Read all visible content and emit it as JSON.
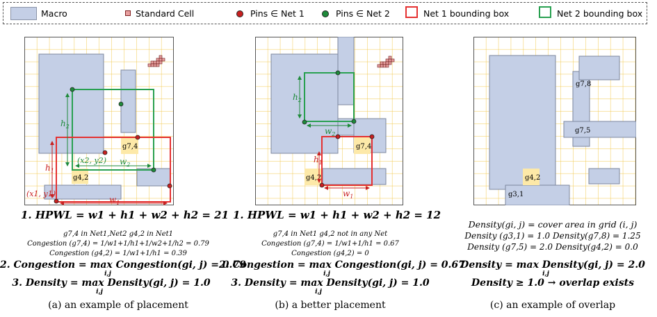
{
  "legend": {
    "macro": "Macro",
    "standard_cell": "Standard Cell",
    "pins_net1": "Pins ∈ Net 1",
    "pins_net2": "Pins ∈ Net 2",
    "net1_box": "Net 1 bounding box",
    "net2_box": "Net 2 bounding box",
    "colors": {
      "macro": "#c4cfe6",
      "grid": "#f2c84b",
      "net1": "#e53030",
      "net2": "#28a050",
      "pin1": "#c82020",
      "pin2": "#1e8a3a",
      "highlight": "#fde9a8"
    }
  },
  "panel_a": {
    "labels": {
      "h2": "h",
      "h2_sub": "2",
      "w2": "w",
      "w2_sub": "2",
      "h1": "h",
      "h1_sub": "1",
      "w1": "w",
      "w1_sub": "1",
      "x2y2": "(x2, y2)",
      "x1y1": "(x1, y1)",
      "g74": "g7,4",
      "g42": "g4,2"
    },
    "hpwl": "1.  HPWL  =  w1 + h1 + w2 + h2 = 21",
    "note1": "g7,4 in Net1,Net2        g4,2 in Net1",
    "note2": "Congestion (g7,4) = 1/w1+1/h1+1/w2+1/h2 = 0.79",
    "note3": "Congestion (g4,2) = 1/w1+1/h1 = 0.39",
    "congestion": "2. Congestion = max Congestion(gi, j) = 0.79",
    "congestion_sub": "i,j",
    "density": "3. Density = max Density(gi, j) = 1.0",
    "density_sub": "i,j",
    "caption": "(a) an example of placement"
  },
  "panel_b": {
    "labels": {
      "h2": "h",
      "h2_sub": "2",
      "w2": "w",
      "w2_sub": "2",
      "h1": "h",
      "h1_sub": "1",
      "w1": "w",
      "w1_sub": "1",
      "g74": "g7,4",
      "g42": "g4,2"
    },
    "hpwl": "1.  HPWL  =  w1 + h1 + w2 + h2 = 12",
    "note1": "g7,4 in Net1   g4,2 not in any Net",
    "note2": "Congestion (g7,4) = 1/w1+1/h1 = 0.67",
    "note3": "Congestion (g4,2) = 0",
    "congestion": "2. Congestion = max Congestion(gi, j) = 0.67",
    "congestion_sub": "i,j",
    "density": "3. Density = max Density(gi, j) = 1.0",
    "density_sub": "i,j",
    "caption": "(b) a better placement"
  },
  "panel_c": {
    "labels": {
      "g78": "g7,8",
      "g75": "g7,5",
      "g42": "g4,2",
      "g31": "g3,1"
    },
    "def": "Density(gi, j) = cover area in grid (i, j)",
    "d1": "Density (g3,1) = 1.0    Density(g7,8) = 1.25",
    "d2": "Density (g7,5) = 2.0    Density(g4,2) = 0.0",
    "density": "Density = max Density(gi, j) = 2.0",
    "density_sub": "i,j",
    "overlap": "Density ≥ 1.0 → overlap exists",
    "caption": "(c) an example of overlap"
  }
}
